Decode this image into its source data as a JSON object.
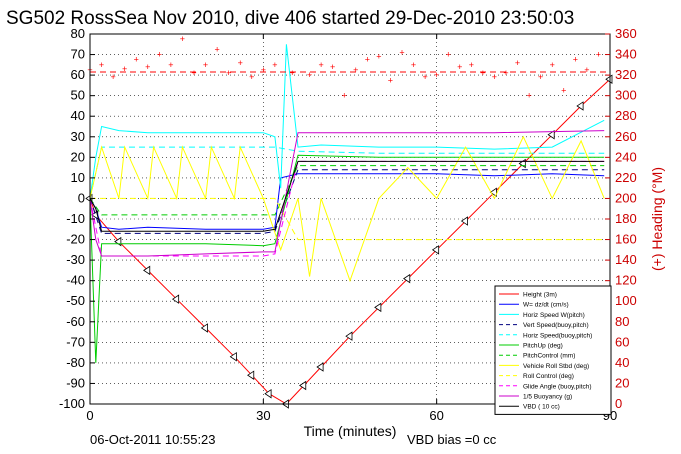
{
  "chart_data": {
    "type": "line",
    "title": "SG502 RossSea Nov 2010, dive 406 started 29-Dec-2010 23:50:03",
    "xlabel": "Time (minutes)",
    "ylabel_right": "(+) Heading (°M)",
    "xlim": [
      0,
      90
    ],
    "ylim": [
      -100,
      80
    ],
    "ylim_right": [
      0,
      360
    ],
    "xticks": [
      "0",
      "30",
      "60",
      "90"
    ],
    "yticks": [
      "80",
      "70",
      "60",
      "50",
      "40",
      "30",
      "20",
      "10",
      "0",
      "-10",
      "-20",
      "-30",
      "-40",
      "-50",
      "-60",
      "-70",
      "-80",
      "-90",
      "-100"
    ],
    "yticks_right": [
      "360",
      "340",
      "320",
      "300",
      "280",
      "260",
      "240",
      "220",
      "200",
      "180",
      "160",
      "140",
      "120",
      "100",
      "80",
      "60",
      "40",
      "20",
      "0"
    ],
    "grid": true,
    "legend_position": "bottom-right",
    "footer_left": "06-Oct-2011 10:55:23",
    "footer_right": "VBD bias =0 cc",
    "series": [
      {
        "name": "Height (3m)",
        "color": "#ff0000",
        "style": "solid",
        "x": [
          0,
          1,
          5,
          10,
          15,
          20,
          25,
          28,
          31,
          34,
          37,
          40,
          45,
          50,
          55,
          60,
          65,
          70,
          75,
          80,
          85,
          90
        ],
        "y": [
          0,
          -8,
          -21,
          -35,
          -49,
          -63,
          -77,
          -86,
          -95,
          -100,
          -91,
          -82,
          -67,
          -53,
          -39,
          -25,
          -11,
          3,
          17,
          31,
          45,
          58
        ]
      },
      {
        "name": "W= dz/dt (cm/s)",
        "color": "#0000ff",
        "style": "solid",
        "x": [
          0,
          1,
          2,
          5,
          10,
          20,
          30,
          32,
          33,
          36,
          40,
          50,
          60,
          70,
          80,
          89
        ],
        "y": [
          0,
          -5,
          -14,
          -15,
          -14,
          -15,
          -15,
          -14,
          10,
          12,
          12,
          12,
          12,
          11,
          12,
          11
        ]
      },
      {
        "name": "Horiz Speed W(pitch)",
        "color": "#00ffff",
        "style": "solid",
        "x": [
          0,
          1,
          2,
          5,
          10,
          20,
          30,
          32,
          33,
          34,
          36,
          40,
          50,
          60,
          70,
          80,
          89
        ],
        "y": [
          0,
          20,
          35,
          33,
          32,
          32,
          32,
          30,
          5,
          75,
          25,
          26,
          25,
          25,
          24,
          25,
          38
        ]
      },
      {
        "name": "Vert Speed(buoy,pitch)",
        "color": "#000080",
        "style": "dashed",
        "x": [
          0,
          2,
          10,
          20,
          30,
          32,
          36,
          50,
          70,
          89
        ],
        "y": [
          0,
          -17,
          -17,
          -17,
          -17,
          -16,
          14,
          14,
          14,
          14
        ]
      },
      {
        "name": "Horiz Speed(buoy,pitch)",
        "color": "#00ffff",
        "style": "dashed",
        "x": [
          0,
          2,
          10,
          20,
          30,
          32,
          36,
          50,
          70,
          89
        ],
        "y": [
          0,
          25,
          25,
          25,
          25,
          25,
          23,
          22,
          22,
          22
        ]
      },
      {
        "name": "PitchUp (deg)",
        "color": "#00cc00",
        "style": "solid",
        "x": [
          0,
          1,
          2,
          10,
          20,
          30,
          32,
          36,
          50,
          70,
          89
        ],
        "y": [
          0,
          -80,
          -22,
          -22,
          -22,
          -23,
          -22,
          21,
          20,
          20,
          20
        ]
      },
      {
        "name": "PitchControl (mm)",
        "color": "#00cc00",
        "style": "dashed",
        "x": [
          0,
          2,
          10,
          20,
          30,
          32,
          36,
          50,
          70,
          89
        ],
        "y": [
          0,
          -8,
          -8,
          -8,
          -8,
          -8,
          16,
          16,
          16,
          16
        ]
      },
      {
        "name": "Vehicle Roll Stbd (deg)",
        "color": "#ffff00",
        "style": "solid",
        "x": [
          0,
          2,
          5,
          6,
          10,
          11,
          15,
          16,
          20,
          21,
          25,
          26,
          30,
          33,
          36,
          38,
          40,
          45,
          50,
          55,
          60,
          65,
          70,
          75,
          80,
          85,
          89
        ],
        "y": [
          0,
          25,
          0,
          25,
          0,
          25,
          0,
          25,
          0,
          25,
          0,
          25,
          0,
          -25,
          0,
          -38,
          0,
          -40,
          0,
          15,
          0,
          25,
          0,
          30,
          0,
          28,
          0
        ]
      },
      {
        "name": "Roll Control (deg)",
        "color": "#ffff00",
        "style": "dashed",
        "x": [
          0,
          2,
          10,
          20,
          30,
          32,
          36,
          50,
          70,
          89
        ],
        "y": [
          0,
          0,
          0,
          0,
          0,
          0,
          -20,
          -20,
          -20,
          -20
        ]
      },
      {
        "name": "Glide Angle (buoy,pitch)",
        "color": "#ff00ff",
        "style": "dashed",
        "x": [
          0,
          2,
          10,
          20,
          30,
          32,
          36,
          50,
          70,
          89
        ],
        "y": [
          0,
          -28,
          -28,
          -28,
          -28,
          -27,
          18,
          18,
          18,
          18
        ]
      },
      {
        "name": "1/5 Buoyancy (g)",
        "color": "#cc00cc",
        "style": "solid",
        "x": [
          0,
          1,
          2,
          10,
          20,
          30,
          32,
          36,
          50,
          70,
          89
        ],
        "y": [
          0,
          -20,
          -28,
          -28,
          -27,
          -26,
          -26,
          32,
          32,
          32,
          33
        ]
      },
      {
        "name": "VBD ( 10 cc)",
        "color": "#000000",
        "style": "solid",
        "x": [
          0,
          1,
          2,
          10,
          20,
          30,
          32,
          36,
          50,
          70,
          89
        ],
        "y": [
          0,
          -5,
          -16,
          -16,
          -16,
          -16,
          -15,
          18,
          18,
          18,
          18
        ]
      }
    ],
    "heading_series": {
      "name": "Heading",
      "color": "#ff0000",
      "axis": "right",
      "reference_heading": 323,
      "x": [
        0,
        2,
        4,
        6,
        8,
        10,
        12,
        14,
        16,
        18,
        20,
        22,
        24,
        26,
        28,
        30,
        32,
        35,
        38,
        40,
        42,
        44,
        46,
        48,
        50,
        52,
        54,
        56,
        58,
        60,
        62,
        64,
        66,
        68,
        70,
        72,
        74,
        76,
        78,
        80,
        82,
        84,
        86,
        88
      ],
      "y": [
        325,
        330,
        318,
        326,
        335,
        328,
        340,
        330,
        355,
        322,
        330,
        345,
        322,
        332,
        318,
        325,
        330,
        322,
        320,
        330,
        328,
        300,
        325,
        335,
        338,
        315,
        342,
        330,
        318,
        320,
        340,
        328,
        330,
        322,
        318,
        322,
        332,
        300,
        318,
        330,
        305,
        335,
        325,
        340
      ]
    }
  }
}
